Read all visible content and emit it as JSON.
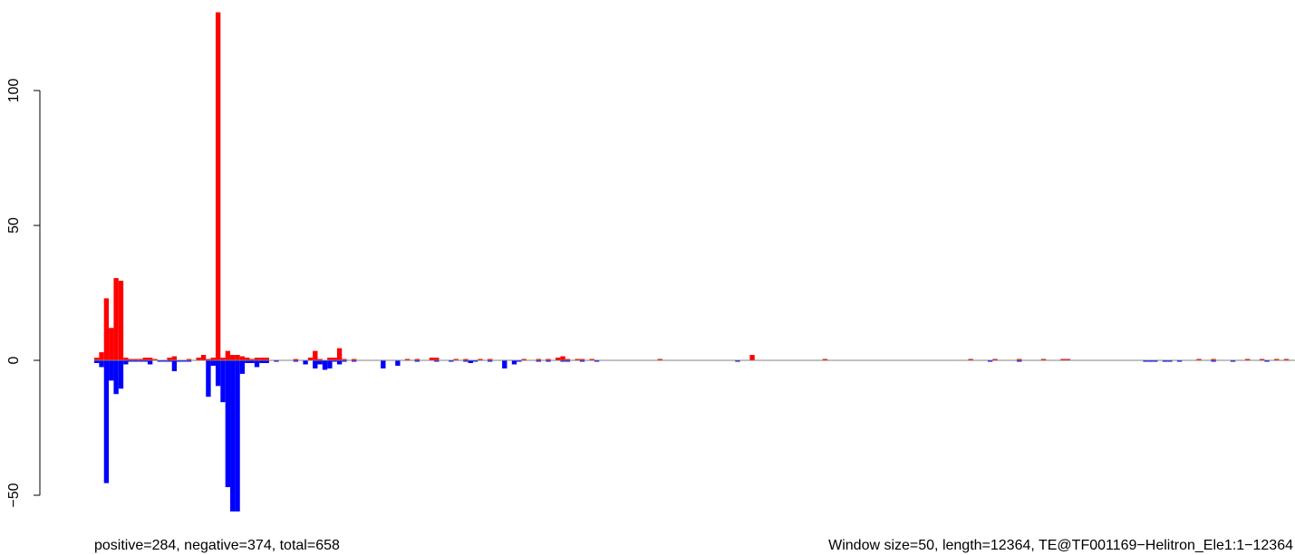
{
  "chart_data": {
    "type": "bar",
    "title": "",
    "xlabel": "",
    "ylabel": "",
    "window_size": 50,
    "length": 12364,
    "ylim": [
      -56,
      129
    ],
    "xlim": [
      0,
      12364
    ],
    "y_ticks": [
      {
        "value": -50,
        "label": "−50"
      },
      {
        "value": 0,
        "label": "0"
      },
      {
        "value": 50,
        "label": "50"
      },
      {
        "value": 100,
        "label": "100"
      }
    ],
    "captions": {
      "left": "positive=284, negative=374, total=658",
      "right": "Window size=50, length=12364, TE@TF001169−Helitron_Ele1:1−12364"
    },
    "colors": {
      "positive": "#ff0000",
      "negative": "#0000ff",
      "baseline": "#808080"
    },
    "series": [
      {
        "name": "positive",
        "color": "#ff0000",
        "bars": [
          {
            "x": 25,
            "v": 1.0
          },
          {
            "x": 75,
            "v": 3.0
          },
          {
            "x": 125,
            "v": 23.0
          },
          {
            "x": 175,
            "v": 12.0
          },
          {
            "x": 225,
            "v": 30.5
          },
          {
            "x": 275,
            "v": 29.5
          },
          {
            "x": 325,
            "v": 1.0
          },
          {
            "x": 375,
            "v": 0.5
          },
          {
            "x": 425,
            "v": 0.5
          },
          {
            "x": 475,
            "v": 0.5
          },
          {
            "x": 525,
            "v": 1.0
          },
          {
            "x": 575,
            "v": 1.0
          },
          {
            "x": 625,
            "v": 0.5
          },
          {
            "x": 775,
            "v": 1.0
          },
          {
            "x": 825,
            "v": 1.5
          },
          {
            "x": 975,
            "v": 0.5
          },
          {
            "x": 1075,
            "v": 1.0
          },
          {
            "x": 1125,
            "v": 2.0
          },
          {
            "x": 1175,
            "v": 0.5
          },
          {
            "x": 1225,
            "v": 1.0
          },
          {
            "x": 1275,
            "v": 129
          },
          {
            "x": 1325,
            "v": 1.0
          },
          {
            "x": 1375,
            "v": 3.5
          },
          {
            "x": 1425,
            "v": 2.0
          },
          {
            "x": 1475,
            "v": 2.0
          },
          {
            "x": 1525,
            "v": 1.5
          },
          {
            "x": 1575,
            "v": 1.0
          },
          {
            "x": 1625,
            "v": 0.5
          },
          {
            "x": 1675,
            "v": 1.0
          },
          {
            "x": 1725,
            "v": 1.0
          },
          {
            "x": 1775,
            "v": 1.0
          },
          {
            "x": 2075,
            "v": 0.5
          },
          {
            "x": 2225,
            "v": 1.0
          },
          {
            "x": 2275,
            "v": 3.5
          },
          {
            "x": 2325,
            "v": 0.5
          },
          {
            "x": 2425,
            "v": 1.0
          },
          {
            "x": 2475,
            "v": 1.0
          },
          {
            "x": 2525,
            "v": 4.5
          },
          {
            "x": 2575,
            "v": 0.5
          },
          {
            "x": 2675,
            "v": 0.5
          },
          {
            "x": 3225,
            "v": 0.5
          },
          {
            "x": 3325,
            "v": 0.5
          },
          {
            "x": 3475,
            "v": 1.0
          },
          {
            "x": 3525,
            "v": 1.0
          },
          {
            "x": 3725,
            "v": 0.5
          },
          {
            "x": 3825,
            "v": 0.5
          },
          {
            "x": 3975,
            "v": 0.5
          },
          {
            "x": 4075,
            "v": 0.5
          },
          {
            "x": 4425,
            "v": 0.5
          },
          {
            "x": 4575,
            "v": 0.5
          },
          {
            "x": 4675,
            "v": 0.5
          },
          {
            "x": 4775,
            "v": 1.0
          },
          {
            "x": 4825,
            "v": 1.5
          },
          {
            "x": 4875,
            "v": 0.5
          },
          {
            "x": 4975,
            "v": 0.5
          },
          {
            "x": 5025,
            "v": 0.5
          },
          {
            "x": 5125,
            "v": 0.5
          },
          {
            "x": 5825,
            "v": 0.5
          },
          {
            "x": 6775,
            "v": 2.0
          },
          {
            "x": 7525,
            "v": 0.5
          },
          {
            "x": 9025,
            "v": 0.5
          },
          {
            "x": 9275,
            "v": 0.5
          },
          {
            "x": 9525,
            "v": 0.5
          },
          {
            "x": 9775,
            "v": 0.5
          },
          {
            "x": 9975,
            "v": 0.5
          },
          {
            "x": 10025,
            "v": 0.5
          },
          {
            "x": 11375,
            "v": 0.5
          },
          {
            "x": 11525,
            "v": 0.5
          },
          {
            "x": 11875,
            "v": 0.5
          },
          {
            "x": 12025,
            "v": 0.5
          },
          {
            "x": 12175,
            "v": 0.5
          },
          {
            "x": 12275,
            "v": 0.5
          }
        ]
      },
      {
        "name": "negative",
        "color": "#0000ff",
        "bars": [
          {
            "x": 25,
            "v": -1.0
          },
          {
            "x": 75,
            "v": -2.5
          },
          {
            "x": 125,
            "v": -45.5
          },
          {
            "x": 175,
            "v": -7.5
          },
          {
            "x": 225,
            "v": -12.5
          },
          {
            "x": 275,
            "v": -10.5
          },
          {
            "x": 325,
            "v": -1.5
          },
          {
            "x": 375,
            "v": -0.5
          },
          {
            "x": 425,
            "v": -0.5
          },
          {
            "x": 475,
            "v": -0.5
          },
          {
            "x": 525,
            "v": -0.5
          },
          {
            "x": 575,
            "v": -1.5
          },
          {
            "x": 675,
            "v": -0.5
          },
          {
            "x": 725,
            "v": -0.5
          },
          {
            "x": 775,
            "v": -0.5
          },
          {
            "x": 825,
            "v": -4.0
          },
          {
            "x": 875,
            "v": -0.5
          },
          {
            "x": 925,
            "v": -0.5
          },
          {
            "x": 975,
            "v": -0.5
          },
          {
            "x": 1175,
            "v": -13.5
          },
          {
            "x": 1225,
            "v": -2.0
          },
          {
            "x": 1275,
            "v": -9.5
          },
          {
            "x": 1325,
            "v": -15.5
          },
          {
            "x": 1375,
            "v": -47.0
          },
          {
            "x": 1425,
            "v": -56.0
          },
          {
            "x": 1475,
            "v": -56.0
          },
          {
            "x": 1525,
            "v": -5.0
          },
          {
            "x": 1575,
            "v": -1.0
          },
          {
            "x": 1625,
            "v": -1.0
          },
          {
            "x": 1675,
            "v": -2.5
          },
          {
            "x": 1725,
            "v": -1.0
          },
          {
            "x": 1775,
            "v": -1.0
          },
          {
            "x": 1875,
            "v": -0.5
          },
          {
            "x": 2075,
            "v": -0.5
          },
          {
            "x": 2175,
            "v": -1.5
          },
          {
            "x": 2275,
            "v": -3.0
          },
          {
            "x": 2325,
            "v": -1.5
          },
          {
            "x": 2375,
            "v": -3.5
          },
          {
            "x": 2425,
            "v": -3.0
          },
          {
            "x": 2475,
            "v": -0.5
          },
          {
            "x": 2525,
            "v": -1.5
          },
          {
            "x": 2575,
            "v": -0.5
          },
          {
            "x": 2675,
            "v": -0.5
          },
          {
            "x": 2975,
            "v": -3.0
          },
          {
            "x": 3125,
            "v": -2.0
          },
          {
            "x": 3325,
            "v": -0.5
          },
          {
            "x": 3525,
            "v": -0.5
          },
          {
            "x": 3675,
            "v": -0.5
          },
          {
            "x": 3825,
            "v": -0.5
          },
          {
            "x": 3875,
            "v": -1.0
          },
          {
            "x": 3925,
            "v": -0.5
          },
          {
            "x": 4075,
            "v": -0.5
          },
          {
            "x": 4225,
            "v": -3.0
          },
          {
            "x": 4325,
            "v": -1.5
          },
          {
            "x": 4375,
            "v": -0.5
          },
          {
            "x": 4575,
            "v": -0.5
          },
          {
            "x": 4675,
            "v": -0.5
          },
          {
            "x": 4825,
            "v": -0.5
          },
          {
            "x": 4875,
            "v": -0.5
          },
          {
            "x": 5025,
            "v": -0.5
          },
          {
            "x": 5175,
            "v": -0.5
          },
          {
            "x": 6625,
            "v": -0.5
          },
          {
            "x": 9225,
            "v": -0.5
          },
          {
            "x": 9525,
            "v": -0.5
          },
          {
            "x": 10825,
            "v": -0.5
          },
          {
            "x": 10875,
            "v": -0.5
          },
          {
            "x": 10925,
            "v": -0.5
          },
          {
            "x": 11025,
            "v": -0.5
          },
          {
            "x": 11075,
            "v": -0.5
          },
          {
            "x": 11175,
            "v": -0.5
          },
          {
            "x": 11525,
            "v": -0.5
          },
          {
            "x": 11725,
            "v": -0.5
          },
          {
            "x": 12075,
            "v": -0.5
          }
        ]
      }
    ]
  }
}
